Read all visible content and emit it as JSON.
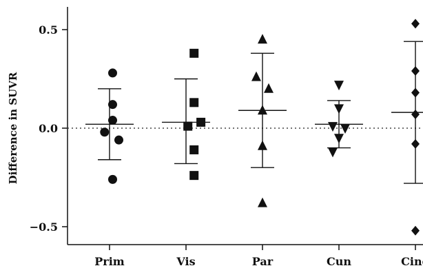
{
  "chart_data": {
    "type": "scatter",
    "title": "",
    "xlabel": "",
    "ylabel": "Difference in SUVR",
    "categories": [
      "Prim",
      "Vis",
      "Par",
      "Cun",
      "Cing"
    ],
    "ylim": [
      -0.6,
      0.6
    ],
    "yticks": [
      {
        "value": 0.5,
        "label": "0.5"
      },
      {
        "value": 0.0,
        "label": "0.0"
      },
      {
        "value": -0.5,
        "label": "−0.5"
      }
    ],
    "zero_reference_line": true,
    "grid": false,
    "legend": "none",
    "series": [
      {
        "category": "Prim",
        "marker": "circle",
        "mean": 0.02,
        "error_upper": 0.2,
        "error_lower": -0.16,
        "points": [
          {
            "x_offset": 0.05,
            "y": 0.28
          },
          {
            "x_offset": 0.05,
            "y": 0.12
          },
          {
            "x_offset": 0.05,
            "y": 0.04
          },
          {
            "x_offset": -0.08,
            "y": -0.02
          },
          {
            "x_offset": 0.15,
            "y": -0.06
          },
          {
            "x_offset": 0.05,
            "y": -0.26
          }
        ]
      },
      {
        "category": "Vis",
        "marker": "square",
        "mean": 0.03,
        "error_upper": 0.25,
        "error_lower": -0.18,
        "points": [
          {
            "x_offset": 0.13,
            "y": 0.38
          },
          {
            "x_offset": 0.13,
            "y": 0.13
          },
          {
            "x_offset": 0.24,
            "y": 0.03
          },
          {
            "x_offset": 0.03,
            "y": 0.01
          },
          {
            "x_offset": 0.13,
            "y": -0.11
          },
          {
            "x_offset": 0.13,
            "y": -0.24
          }
        ]
      },
      {
        "category": "Par",
        "marker": "triangle",
        "mean": 0.09,
        "error_upper": 0.38,
        "error_lower": -0.2,
        "points": [
          {
            "x_offset": 0.0,
            "y": 0.45
          },
          {
            "x_offset": -0.1,
            "y": 0.26
          },
          {
            "x_offset": 0.1,
            "y": 0.2
          },
          {
            "x_offset": 0.0,
            "y": 0.09
          },
          {
            "x_offset": 0.0,
            "y": -0.09
          },
          {
            "x_offset": 0.0,
            "y": -0.38
          }
        ]
      },
      {
        "category": "Cun",
        "marker": "triangle-down",
        "mean": 0.02,
        "error_upper": 0.14,
        "error_lower": -0.1,
        "points": [
          {
            "x_offset": 0.0,
            "y": 0.22
          },
          {
            "x_offset": 0.0,
            "y": 0.1
          },
          {
            "x_offset": -0.1,
            "y": 0.01
          },
          {
            "x_offset": 0.1,
            "y": 0.0
          },
          {
            "x_offset": 0.0,
            "y": -0.05
          },
          {
            "x_offset": -0.1,
            "y": -0.12
          }
        ]
      },
      {
        "category": "Cing",
        "marker": "diamond",
        "mean": 0.08,
        "error_upper": 0.44,
        "error_lower": -0.28,
        "points": [
          {
            "x_offset": 0.0,
            "y": 0.53
          },
          {
            "x_offset": 0.0,
            "y": 0.29
          },
          {
            "x_offset": 0.0,
            "y": 0.18
          },
          {
            "x_offset": 0.0,
            "y": 0.07
          },
          {
            "x_offset": 0.0,
            "y": -0.08
          },
          {
            "x_offset": 0.0,
            "y": -0.52
          }
        ]
      }
    ]
  }
}
